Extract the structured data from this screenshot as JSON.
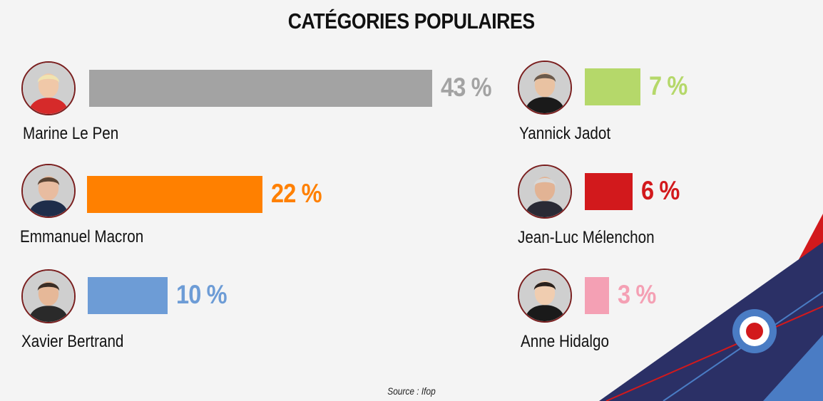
{
  "chart_data": {
    "type": "bar",
    "title": "CATÉGORIES POPULAIRES",
    "unit": "%",
    "categories": [
      "Marine Le Pen",
      "Emmanuel Macron",
      "Xavier Bertrand",
      "Yannick Jadot",
      "Jean-Luc Mélenchon",
      "Anne Hidalgo"
    ],
    "values": [
      43,
      22,
      10,
      7,
      6,
      3
    ],
    "value_labels": [
      "43 %",
      "22 %",
      "10 %",
      "7 %",
      "6 %",
      "3 %"
    ],
    "colors": [
      "#a3a3a3",
      "#ff8000",
      "#6d9cd6",
      "#b5d86a",
      "#d2191c",
      "#f4a0b4"
    ],
    "xlim": [
      0,
      43
    ],
    "grid": false,
    "legend": "none"
  },
  "source": "Source :  Ifop",
  "icons": [
    "candidate-photo-icon",
    "roundel-icon"
  ]
}
